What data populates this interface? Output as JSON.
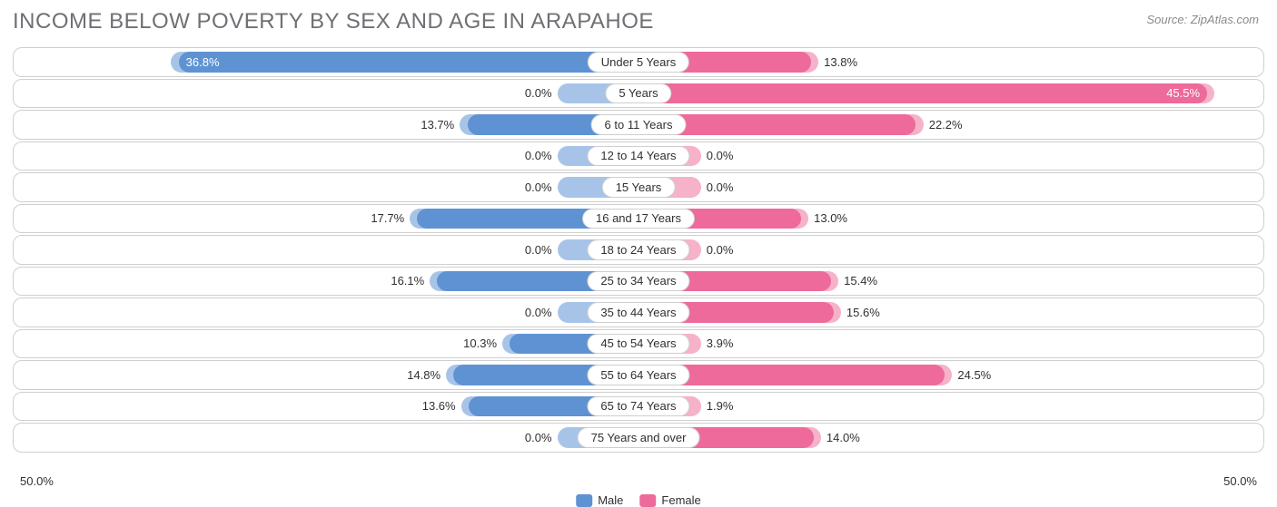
{
  "title": "INCOME BELOW POVERTY BY SEX AND AGE IN ARAPAHOE",
  "source": "Source: ZipAtlas.com",
  "chart": {
    "type": "diverging-bar",
    "axis_max": 50.0,
    "axis_label_left": "50.0%",
    "axis_label_right": "50.0%",
    "background_color": "#ffffff",
    "row_border_color": "#cfcfcf",
    "title_color": "#6f7074",
    "title_fontsize": 24,
    "source_color": "#888a8e",
    "label_fontsize": 13,
    "text_color": "#303030",
    "male_color": "#5f92d2",
    "male_bg_color": "#a7c4e8",
    "male_bg_default_pct": 6.5,
    "female_color": "#ed6a9b",
    "female_bg_color": "#f5b2c9",
    "female_bg_default_pct": 5.0,
    "legend": {
      "male_label": "Male",
      "female_label": "Female"
    },
    "categories": [
      {
        "label": "Under 5 Years",
        "male": 36.8,
        "female": 13.8,
        "male_inside": true,
        "female_inside": false
      },
      {
        "label": "5 Years",
        "male": 0.0,
        "female": 45.5,
        "male_inside": false,
        "female_inside": true
      },
      {
        "label": "6 to 11 Years",
        "male": 13.7,
        "female": 22.2,
        "male_inside": false,
        "female_inside": false
      },
      {
        "label": "12 to 14 Years",
        "male": 0.0,
        "female": 0.0,
        "male_inside": false,
        "female_inside": false
      },
      {
        "label": "15 Years",
        "male": 0.0,
        "female": 0.0,
        "male_inside": false,
        "female_inside": false
      },
      {
        "label": "16 and 17 Years",
        "male": 17.7,
        "female": 13.0,
        "male_inside": false,
        "female_inside": false
      },
      {
        "label": "18 to 24 Years",
        "male": 0.0,
        "female": 0.0,
        "male_inside": false,
        "female_inside": false
      },
      {
        "label": "25 to 34 Years",
        "male": 16.1,
        "female": 15.4,
        "male_inside": false,
        "female_inside": false
      },
      {
        "label": "35 to 44 Years",
        "male": 0.0,
        "female": 15.6,
        "male_inside": false,
        "female_inside": false
      },
      {
        "label": "45 to 54 Years",
        "male": 10.3,
        "female": 3.9,
        "male_inside": false,
        "female_inside": false
      },
      {
        "label": "55 to 64 Years",
        "male": 14.8,
        "female": 24.5,
        "male_inside": false,
        "female_inside": false
      },
      {
        "label": "65 to 74 Years",
        "male": 13.6,
        "female": 1.9,
        "male_inside": false,
        "female_inside": false
      },
      {
        "label": "75 Years and over",
        "male": 0.0,
        "female": 14.0,
        "male_inside": false,
        "female_inside": false
      }
    ]
  }
}
